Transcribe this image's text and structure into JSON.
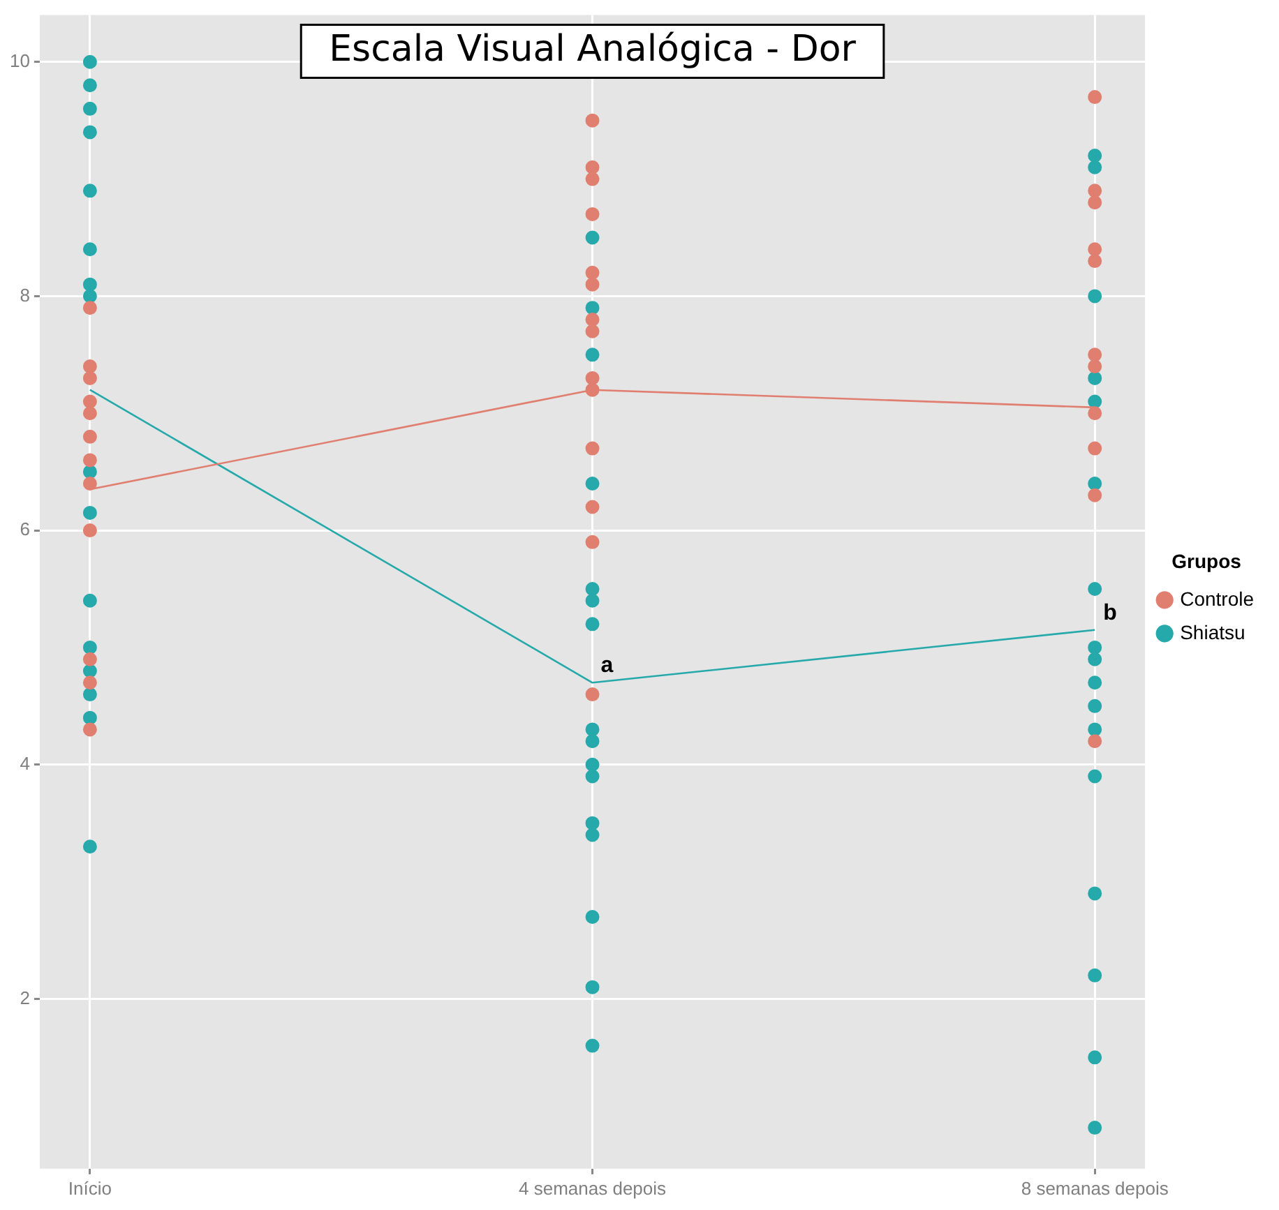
{
  "chart_data": {
    "type": "line",
    "title": "Escala Visual Analógica - Dor",
    "legend_title": "Grupos",
    "legend": "right",
    "grid": true,
    "marker": "circle",
    "categories": [
      "Início",
      "4 semanas depois",
      "8 semanas depois"
    ],
    "ylim": [
      0.55,
      10.4
    ],
    "yticks": [
      2,
      4,
      6,
      8,
      10
    ],
    "series": [
      {
        "name": "Controle",
        "marker": "none",
        "color": "#e07f70",
        "values": [
          6.35,
          7.2,
          7.05
        ]
      },
      {
        "name": "Shiatsu",
        "marker": "none",
        "color": "#26a9ab",
        "values": [
          7.2,
          4.7,
          5.15
        ]
      },
      {
        "type": "scatter",
        "color": "#e07f70",
        "x": [
          "Início",
          "Início",
          "Início",
          "Início",
          "Início",
          "Início",
          "Início",
          "Início",
          "Início",
          "Início",
          "Início",
          "Início",
          "4 semanas depois",
          "4 semanas depois",
          "4 semanas depois",
          "4 semanas depois",
          "4 semanas depois",
          "4 semanas depois",
          "4 semanas depois",
          "4 semanas depois",
          "4 semanas depois",
          "4 semanas depois",
          "4 semanas depois",
          "4 semanas depois",
          "4 semanas depois",
          "4 semanas depois",
          "8 semanas depois",
          "8 semanas depois",
          "8 semanas depois",
          "8 semanas depois",
          "8 semanas depois",
          "8 semanas depois",
          "8 semanas depois",
          "8 semanas depois",
          "8 semanas depois",
          "8 semanas depois",
          "8 semanas depois"
        ],
        "values": [
          7.9,
          7.4,
          7.3,
          7.1,
          7.0,
          6.8,
          6.6,
          6.4,
          6.0,
          4.9,
          4.7,
          4.3,
          9.5,
          9.1,
          9.0,
          8.7,
          8.2,
          8.1,
          7.8,
          7.7,
          7.3,
          7.2,
          6.7,
          6.2,
          5.9,
          4.6,
          9.7,
          8.9,
          8.8,
          8.4,
          8.3,
          7.5,
          7.4,
          7.0,
          6.7,
          6.3,
          4.2
        ]
      },
      {
        "type": "scatter",
        "color": "#26a9ab",
        "x": [
          "Início",
          "Início",
          "Início",
          "Início",
          "Início",
          "Início",
          "Início",
          "Início",
          "Início",
          "Início",
          "Início",
          "Início",
          "Início",
          "Início",
          "Início",
          "Início",
          "4 semanas depois",
          "4 semanas depois",
          "4 semanas depois",
          "4 semanas depois",
          "4 semanas depois",
          "4 semanas depois",
          "4 semanas depois",
          "4 semanas depois",
          "4 semanas depois",
          "4 semanas depois",
          "4 semanas depois",
          "4 semanas depois",
          "4 semanas depois",
          "4 semanas depois",
          "4 semanas depois",
          "4 semanas depois",
          "8 semanas depois",
          "8 semanas depois",
          "8 semanas depois",
          "8 semanas depois",
          "8 semanas depois",
          "8 semanas depois",
          "8 semanas depois",
          "8 semanas depois",
          "8 semanas depois",
          "8 semanas depois",
          "8 semanas depois",
          "8 semanas depois",
          "8 semanas depois",
          "8 semanas depois",
          "8 semanas depois",
          "8 semanas depois",
          "8 semanas depois"
        ],
        "values": [
          10.0,
          9.8,
          9.6,
          9.4,
          8.9,
          8.4,
          8.1,
          8.0,
          6.5,
          6.15,
          5.4,
          5.0,
          4.8,
          4.6,
          4.4,
          3.3,
          8.5,
          7.9,
          7.5,
          6.4,
          5.5,
          5.4,
          5.2,
          4.3,
          4.2,
          4.0,
          3.9,
          3.5,
          3.4,
          2.7,
          2.1,
          1.6,
          9.2,
          9.1,
          8.0,
          7.3,
          7.1,
          6.4,
          5.5,
          5.0,
          4.9,
          4.7,
          4.5,
          4.3,
          3.9,
          2.9,
          2.2,
          1.5,
          0.9
        ]
      }
    ],
    "annotations": [
      {
        "text": "a",
        "x": "4 semanas depois",
        "y": 4.7
      },
      {
        "text": "b",
        "x": "8 semanas depois",
        "y": 5.15
      }
    ]
  }
}
